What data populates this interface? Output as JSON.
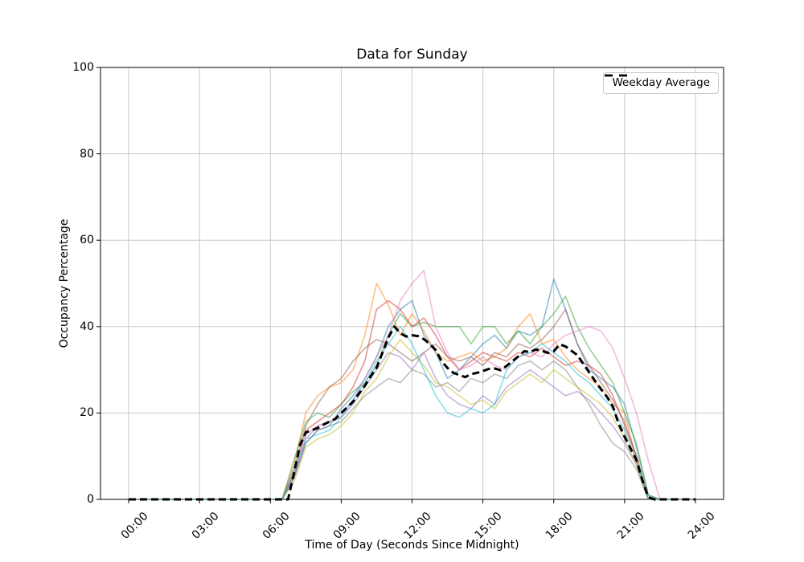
{
  "chart_data": {
    "type": "line",
    "title": "Data for Sunday",
    "xlabel": "Time of Day (Seconds Since Midnight)",
    "ylabel": "Occupancy Percentage",
    "x_ticks_hours": [
      0,
      3,
      6,
      9,
      12,
      15,
      18,
      21,
      24
    ],
    "x_tick_labels": [
      "00:00",
      "03:00",
      "06:00",
      "09:00",
      "12:00",
      "15:00",
      "18:00",
      "21:00",
      "24:00"
    ],
    "y_ticks": [
      0,
      20,
      40,
      60,
      80,
      100
    ],
    "ylim": [
      0,
      100
    ],
    "xlim_hours": [
      -1.2,
      25.2
    ],
    "grid": true,
    "grid_color": "#c8c8c8",
    "axis_color": "#000000",
    "background_color": "#ffffff",
    "series_opacity": 0.5,
    "legend": {
      "position": "upper right",
      "entries": [
        {
          "label": "Weekday Average",
          "style": "dashed",
          "color": "#000000"
        }
      ]
    },
    "series": [
      {
        "name": "line-1",
        "color": "#1f77b4",
        "x_step_hours": 0.5,
        "values": [
          0,
          0,
          0,
          0,
          0,
          0,
          0,
          0,
          0,
          0,
          0,
          0,
          0,
          0,
          5,
          13,
          16,
          17,
          21,
          24,
          28,
          33,
          40,
          44,
          46,
          38,
          34,
          28,
          30,
          33,
          36,
          38,
          35,
          39,
          38,
          40,
          51,
          44,
          36,
          30,
          28,
          26,
          22,
          12,
          1,
          0,
          0,
          0,
          0
        ]
      },
      {
        "name": "line-2",
        "color": "#ff7f0e",
        "x_step_hours": 0.5,
        "values": [
          0,
          0,
          0,
          0,
          0,
          0,
          0,
          0,
          0,
          0,
          0,
          0,
          0,
          0,
          8,
          20,
          24,
          26,
          27,
          30,
          38,
          50,
          45,
          38,
          43,
          39,
          34,
          32,
          33,
          34,
          32,
          33,
          35,
          40,
          43,
          36,
          37,
          33,
          30,
          28,
          26,
          22,
          20,
          9,
          0,
          0,
          0,
          0,
          0
        ]
      },
      {
        "name": "line-3",
        "color": "#2ca02c",
        "x_step_hours": 0.5,
        "values": [
          0,
          0,
          0,
          0,
          0,
          0,
          0,
          0,
          0,
          0,
          0,
          0,
          0,
          0,
          9,
          18,
          20,
          19,
          22,
          25,
          27,
          31,
          38,
          43,
          40,
          41,
          40,
          40,
          40,
          36,
          40,
          40,
          36,
          39,
          36,
          40,
          43,
          47,
          40,
          35,
          31,
          27,
          20,
          13,
          1,
          0,
          0,
          0,
          0
        ]
      },
      {
        "name": "line-4",
        "color": "#d62728",
        "x_step_hours": 0.5,
        "values": [
          0,
          0,
          0,
          0,
          0,
          0,
          0,
          0,
          0,
          0,
          0,
          0,
          0,
          0,
          6,
          16,
          18,
          20,
          22,
          26,
          32,
          44,
          46,
          44,
          40,
          42,
          38,
          33,
          30,
          32,
          34,
          33,
          32,
          34,
          33,
          35,
          33,
          31,
          32,
          31,
          29,
          24,
          17,
          10,
          0,
          0,
          0,
          0,
          0
        ]
      },
      {
        "name": "line-5",
        "color": "#9467bd",
        "x_step_hours": 0.5,
        "values": [
          0,
          0,
          0,
          0,
          0,
          0,
          0,
          0,
          0,
          0,
          0,
          0,
          0,
          0,
          5,
          14,
          17,
          18,
          19,
          22,
          26,
          30,
          34,
          33,
          30,
          34,
          28,
          24,
          22,
          21,
          24,
          22,
          26,
          28,
          30,
          28,
          26,
          24,
          25,
          23,
          20,
          17,
          13,
          8,
          0,
          0,
          0,
          0,
          0
        ]
      },
      {
        "name": "line-6",
        "color": "#8c564b",
        "x_step_hours": 0.5,
        "values": [
          0,
          0,
          0,
          0,
          0,
          0,
          0,
          0,
          0,
          0,
          0,
          0,
          0,
          0,
          7,
          17,
          22,
          26,
          28,
          32,
          35,
          37,
          36,
          34,
          32,
          34,
          36,
          33,
          32,
          33,
          31,
          34,
          33,
          36,
          35,
          37,
          40,
          44,
          36,
          31,
          27,
          23,
          18,
          10,
          0,
          0,
          0,
          0,
          0
        ]
      },
      {
        "name": "line-7",
        "color": "#e377c2",
        "x_step_hours": 0.5,
        "values": [
          0,
          0,
          0,
          0,
          0,
          0,
          0,
          0,
          0,
          0,
          0,
          0,
          0,
          0,
          6,
          15,
          17,
          18,
          20,
          23,
          28,
          33,
          38,
          46,
          50,
          53,
          40,
          34,
          30,
          31,
          33,
          31,
          30,
          33,
          34,
          33,
          36,
          38,
          39,
          40,
          39,
          35,
          28,
          20,
          9,
          0,
          0,
          0,
          0
        ]
      },
      {
        "name": "line-8",
        "color": "#7f7f7f",
        "x_step_hours": 0.5,
        "values": [
          0,
          0,
          0,
          0,
          0,
          0,
          0,
          0,
          0,
          0,
          0,
          0,
          0,
          0,
          5,
          13,
          16,
          17,
          18,
          21,
          24,
          26,
          28,
          27,
          30,
          29,
          26,
          27,
          25,
          28,
          27,
          29,
          28,
          31,
          32,
          30,
          32,
          30,
          26,
          22,
          17,
          13,
          11,
          7,
          0,
          0,
          0,
          0,
          0
        ]
      },
      {
        "name": "line-9",
        "color": "#bcbd22",
        "x_step_hours": 0.5,
        "values": [
          0,
          0,
          0,
          0,
          0,
          0,
          0,
          0,
          0,
          0,
          0,
          0,
          0,
          0,
          4,
          12,
          14,
          15,
          17,
          20,
          25,
          28,
          33,
          37,
          34,
          31,
          27,
          26,
          24,
          22,
          23,
          21,
          25,
          27,
          29,
          27,
          30,
          28,
          26,
          24,
          22,
          19,
          14,
          8,
          0,
          0,
          0,
          0,
          0
        ]
      },
      {
        "name": "line-10",
        "color": "#17becf",
        "x_step_hours": 0.5,
        "values": [
          0,
          0,
          0,
          0,
          0,
          0,
          0,
          0,
          0,
          0,
          0,
          0,
          0,
          0,
          6,
          14,
          15,
          16,
          19,
          23,
          27,
          32,
          36,
          40,
          36,
          30,
          24,
          20,
          19,
          21,
          20,
          22,
          30,
          33,
          34,
          36,
          34,
          32,
          29,
          27,
          24,
          21,
          16,
          9,
          0,
          0,
          0,
          0,
          0
        ]
      }
    ],
    "average_series": {
      "name": "Weekday Average",
      "color": "#000000",
      "dash": [
        9,
        5
      ],
      "x_step_hours": 0.25,
      "values": [
        0,
        0,
        0,
        0,
        0,
        0,
        0,
        0,
        0,
        0,
        0,
        0,
        0,
        0,
        0,
        0,
        0,
        0,
        0,
        0,
        0,
        0,
        0,
        0,
        0,
        0,
        0,
        0,
        6,
        12.5,
        15.5,
        16,
        16.5,
        17.3,
        18,
        18.6,
        20,
        21.3,
        22.6,
        24.5,
        26.3,
        28.5,
        30.5,
        34,
        37.5,
        40,
        38.5,
        37.7,
        38,
        37.8,
        37.1,
        36,
        34.6,
        32,
        30.4,
        29.3,
        28.8,
        28.3,
        29,
        29.3,
        29.7,
        30.2,
        30.3,
        29.9,
        30.9,
        32,
        33.1,
        34.3,
        34.1,
        34.7,
        34.4,
        33.9,
        34.3,
        35.9,
        35.4,
        34.4,
        33.4,
        31.4,
        29.4,
        27.4,
        25.5,
        23.8,
        21.5,
        17.5,
        14.5,
        11.8,
        9.1,
        4.5,
        0.5,
        0,
        0,
        0,
        0,
        0,
        0,
        0,
        0
      ]
    }
  }
}
